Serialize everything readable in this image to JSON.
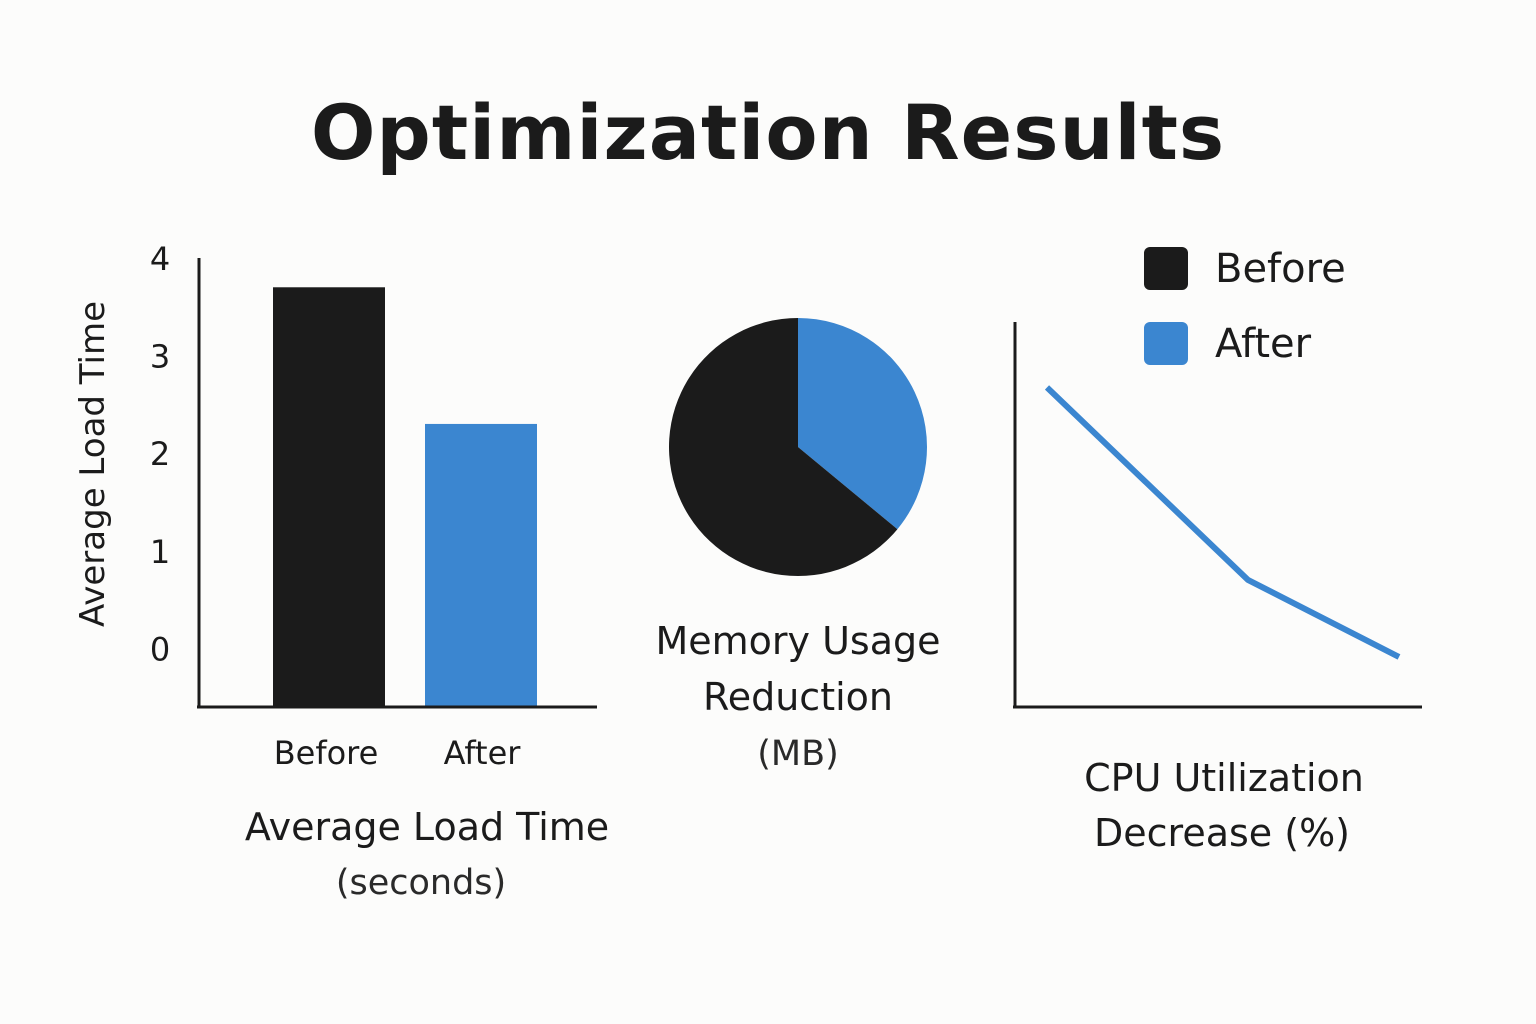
{
  "title": "Optimization Results",
  "colors": {
    "before": "#1b1b1b",
    "after": "#3b86d0",
    "axis": "#1b1b1b"
  },
  "legend": {
    "position": "top-right",
    "items": [
      {
        "label": "Before",
        "color": "#1b1b1b"
      },
      {
        "label": "After",
        "color": "#3b86d0"
      }
    ]
  },
  "chart_data": [
    {
      "type": "bar",
      "categories": [
        "Before",
        "After"
      ],
      "values": [
        3.7,
        2.3
      ],
      "ylabel": "Average Load Time",
      "yticks": [
        "0",
        "1",
        "2",
        "3",
        "4"
      ],
      "ylim": [
        -0.6,
        4
      ],
      "caption": "Average Load Time",
      "caption_sub": "(seconds)"
    },
    {
      "type": "pie",
      "slices": [
        {
          "label": "Before",
          "value": 64
        },
        {
          "label": "After",
          "value": 36
        }
      ],
      "caption": "Memory Usage Reduction",
      "caption_sub": "(MB)"
    },
    {
      "type": "line",
      "x": [
        0,
        1,
        2
      ],
      "y": [
        83,
        33,
        13
      ],
      "ylim": [
        0,
        100
      ],
      "caption": "CPU Utilization",
      "caption_sub": "Decrease (%)"
    }
  ]
}
